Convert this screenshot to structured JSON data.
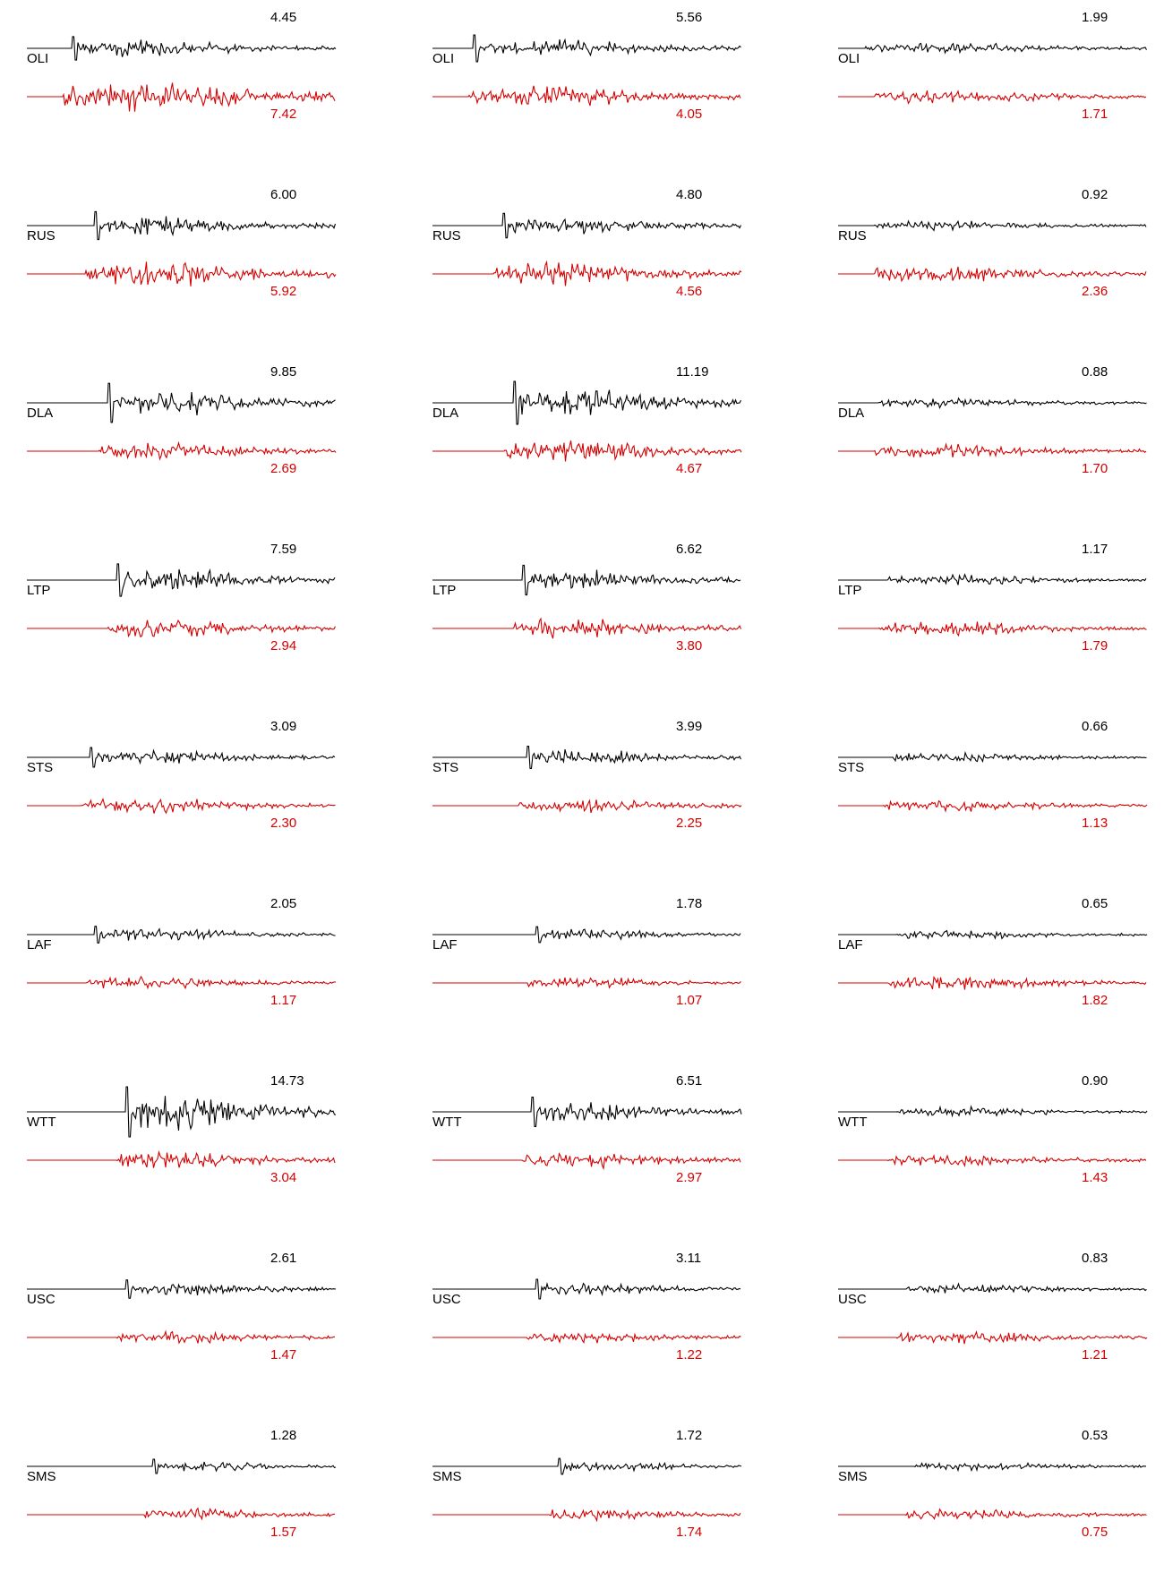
{
  "colors": {
    "top_trace": "#000000",
    "bottom_trace": "#d40000"
  },
  "chart_data": {
    "type": "line",
    "title": "",
    "xlabel": "",
    "ylabel": "",
    "grid": false,
    "stations": [
      "OLI",
      "RUS",
      "DLA",
      "LTP",
      "STS",
      "LAF",
      "WTT",
      "USC",
      "SMS"
    ],
    "columns": 3,
    "rows": [
      {
        "station": "OLI",
        "panels": [
          {
            "top": "4.45",
            "bottom": "7.42"
          },
          {
            "top": "5.56",
            "bottom": "4.05"
          },
          {
            "top": "1.99",
            "bottom": "1.71"
          }
        ]
      },
      {
        "station": "RUS",
        "panels": [
          {
            "top": "6.00",
            "bottom": "5.92"
          },
          {
            "top": "4.80",
            "bottom": "4.56"
          },
          {
            "top": "0.92",
            "bottom": "2.36"
          }
        ]
      },
      {
        "station": "DLA",
        "panels": [
          {
            "top": "9.85",
            "bottom": "2.69"
          },
          {
            "top": "11.19",
            "bottom": "4.67"
          },
          {
            "top": "0.88",
            "bottom": "1.70"
          }
        ]
      },
      {
        "station": "LTP",
        "panels": [
          {
            "top": "7.59",
            "bottom": "2.94"
          },
          {
            "top": "6.62",
            "bottom": "3.80"
          },
          {
            "top": "1.17",
            "bottom": "1.79"
          }
        ]
      },
      {
        "station": "STS",
        "panels": [
          {
            "top": "3.09",
            "bottom": "2.30"
          },
          {
            "top": "3.99",
            "bottom": "2.25"
          },
          {
            "top": "0.66",
            "bottom": "1.13"
          }
        ]
      },
      {
        "station": "LAF",
        "panels": [
          {
            "top": "2.05",
            "bottom": "1.17"
          },
          {
            "top": "1.78",
            "bottom": "1.07"
          },
          {
            "top": "0.65",
            "bottom": "1.82"
          }
        ]
      },
      {
        "station": "WTT",
        "panels": [
          {
            "top": "14.73",
            "bottom": "3.04"
          },
          {
            "top": "6.51",
            "bottom": "2.97"
          },
          {
            "top": "0.90",
            "bottom": "1.43"
          }
        ]
      },
      {
        "station": "USC",
        "panels": [
          {
            "top": "2.61",
            "bottom": "1.47"
          },
          {
            "top": "3.11",
            "bottom": "1.22"
          },
          {
            "top": "0.83",
            "bottom": "1.21"
          }
        ]
      },
      {
        "station": "SMS",
        "panels": [
          {
            "top": "1.28",
            "bottom": "1.57"
          },
          {
            "top": "1.72",
            "bottom": "1.74"
          },
          {
            "top": "0.53",
            "bottom": "0.75"
          }
        ]
      }
    ]
  }
}
